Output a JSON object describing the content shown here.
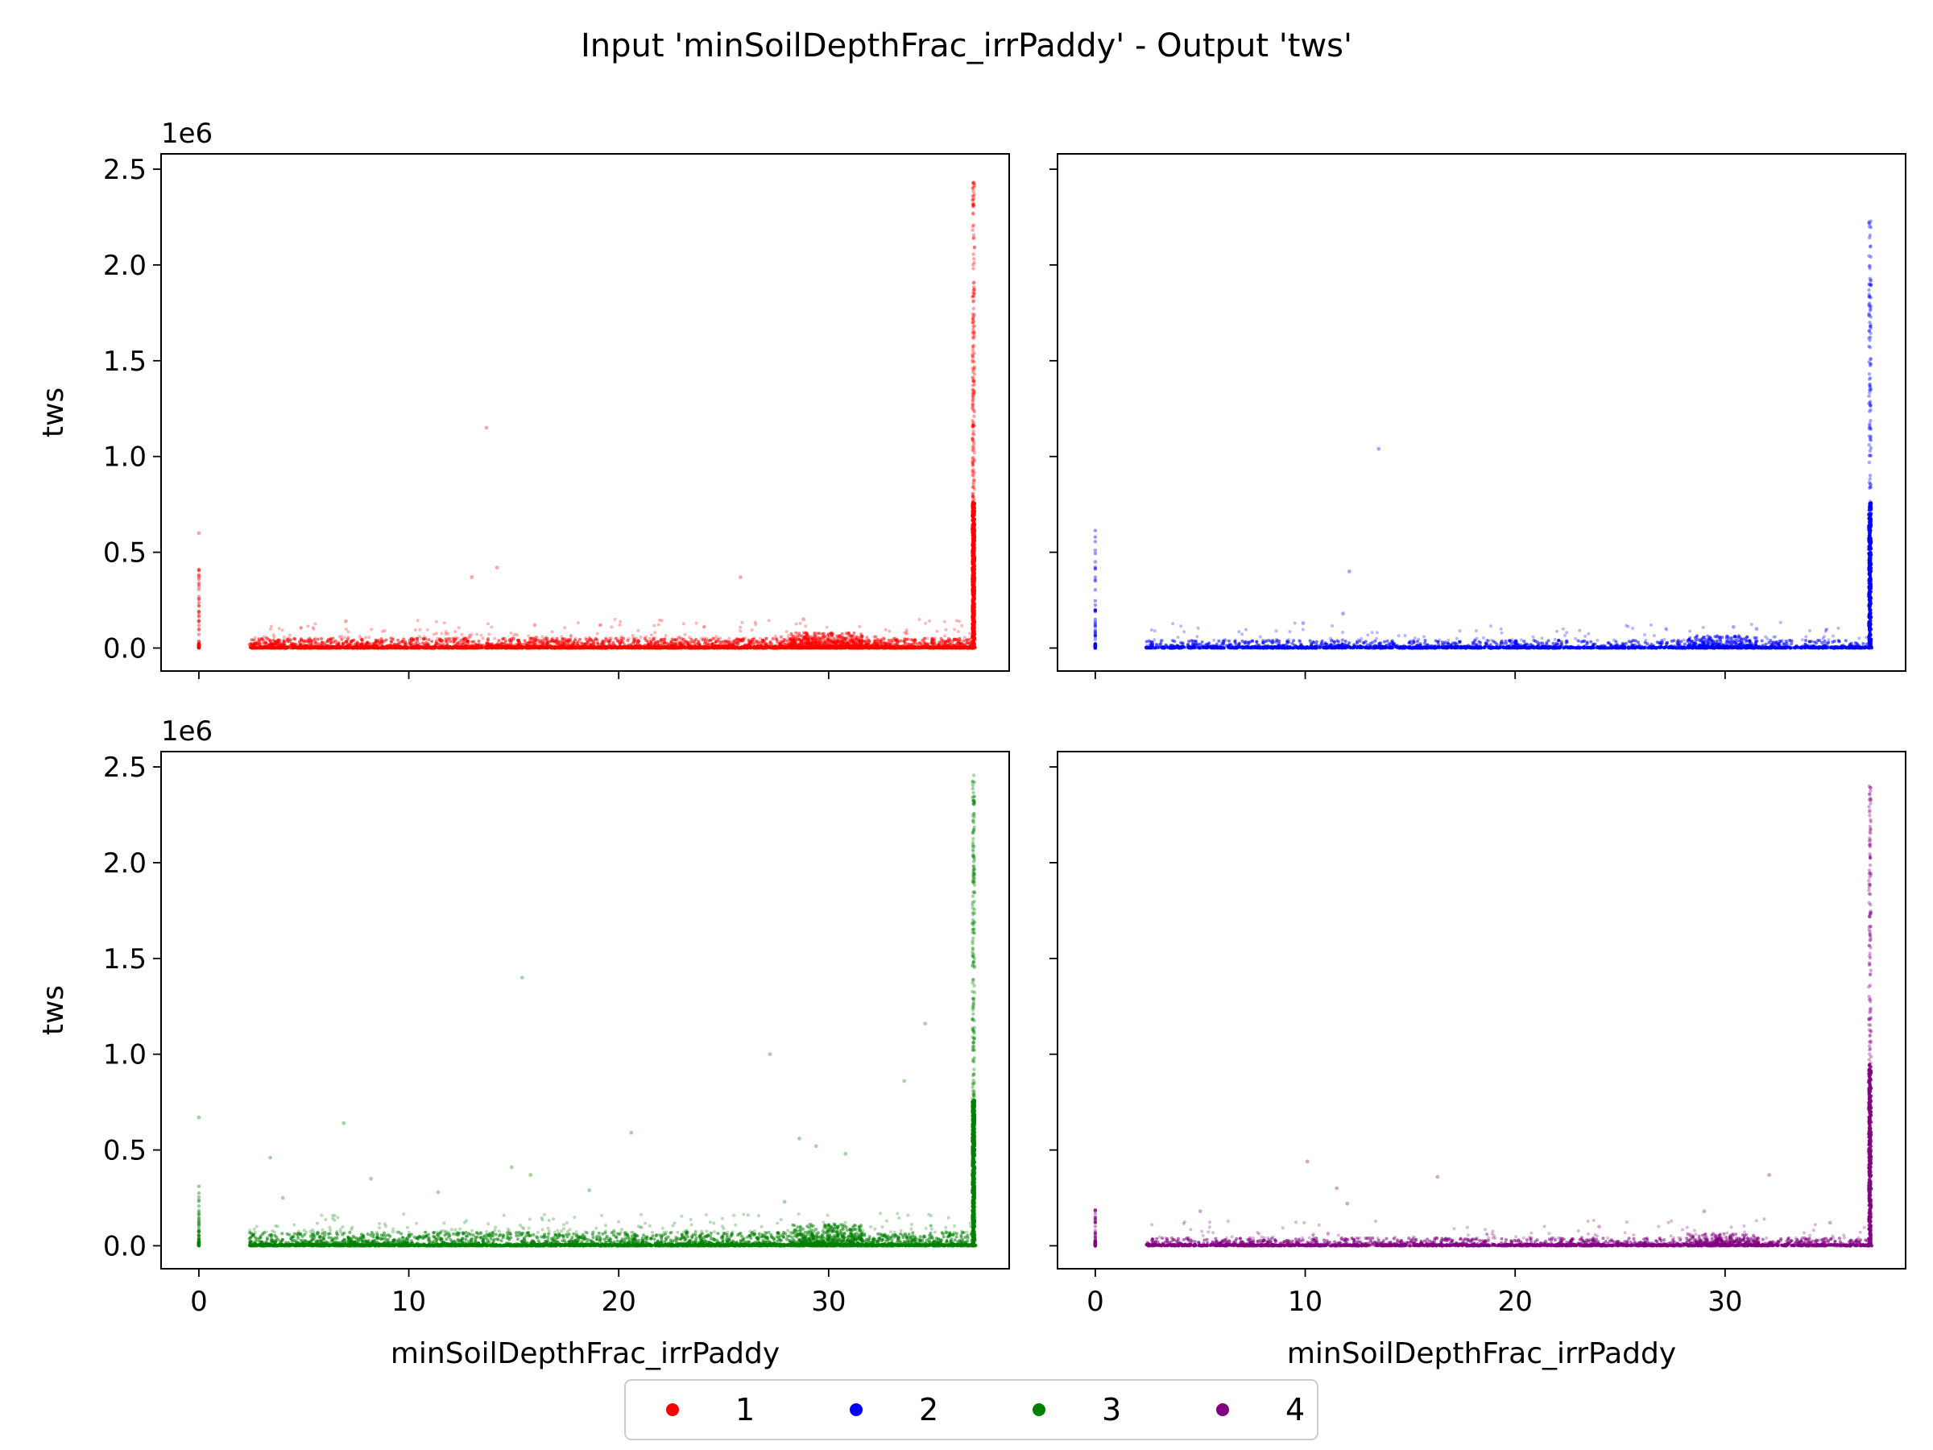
{
  "title": "Input 'minSoilDepthFrac_irrPaddy' - Output 'tws'",
  "chart_data": {
    "type": "scatter",
    "layout": "2x2 subplots, shared axes",
    "xlabel": "minSoilDepthFrac_irrPaddy",
    "ylabel": "tws",
    "y_offset_label": "1e6",
    "xlim": [
      -1.8,
      38.6
    ],
    "ylim": [
      -0.12,
      2.58
    ],
    "xticks": [
      0,
      10,
      20,
      30
    ],
    "xtick_labels": [
      "0",
      "10",
      "20",
      "30"
    ],
    "yticks": [
      0.0,
      0.5,
      1.0,
      1.5,
      2.0,
      2.5
    ],
    "ytick_labels": [
      "0.0",
      "0.5",
      "1.0",
      "1.5",
      "2.0",
      "2.5"
    ],
    "y_units": "x 1e6",
    "legend": {
      "position": "bottom-center",
      "entries": [
        "1",
        "2",
        "3",
        "4"
      ]
    },
    "panels": [
      {
        "series": "1",
        "color": "#ff0000",
        "density": 1.0,
        "base_x_start": 2.4,
        "zero_cluster_max": 0.42,
        "col_max": 2.45,
        "col_dense_max": 0.76,
        "band_max": 0.05,
        "outliers": [
          [
            0.0,
            0.6
          ],
          [
            13.7,
            1.15
          ],
          [
            13.0,
            0.37
          ],
          [
            14.2,
            0.42
          ],
          [
            25.8,
            0.37
          ],
          [
            28.8,
            0.15
          ],
          [
            7.0,
            0.14
          ],
          [
            16.0,
            0.12
          ]
        ]
      },
      {
        "series": "2",
        "color": "#0000ff",
        "density": 0.55,
        "base_x_start": 2.4,
        "zero_cluster_max": 0.62,
        "col_max": 2.25,
        "col_dense_max": 0.76,
        "band_max": 0.04,
        "outliers": [
          [
            13.5,
            1.04
          ],
          [
            12.1,
            0.4
          ],
          [
            11.8,
            0.18
          ],
          [
            9.9,
            0.13
          ],
          [
            0.0,
            0.51
          ],
          [
            0.0,
            0.45
          ],
          [
            30.4,
            0.11
          ],
          [
            31.5,
            0.1
          ]
        ]
      },
      {
        "series": "3",
        "color": "#008000",
        "density": 1.0,
        "base_x_start": 2.4,
        "zero_cluster_max": 0.33,
        "col_max": 2.46,
        "col_dense_max": 0.76,
        "band_max": 0.07,
        "outliers": [
          [
            0.0,
            0.67
          ],
          [
            3.4,
            0.46
          ],
          [
            4.0,
            0.25
          ],
          [
            6.9,
            0.64
          ],
          [
            8.2,
            0.35
          ],
          [
            11.4,
            0.28
          ],
          [
            14.9,
            0.41
          ],
          [
            15.4,
            1.4
          ],
          [
            15.8,
            0.37
          ],
          [
            18.6,
            0.29
          ],
          [
            20.6,
            0.59
          ],
          [
            27.2,
            1.0
          ],
          [
            28.6,
            0.56
          ],
          [
            29.4,
            0.52
          ],
          [
            30.8,
            0.48
          ],
          [
            33.6,
            0.86
          ],
          [
            34.6,
            1.16
          ],
          [
            27.9,
            0.23
          ]
        ]
      },
      {
        "series": "4",
        "color": "#800080",
        "density": 0.6,
        "base_x_start": 2.4,
        "zero_cluster_max": 0.2,
        "col_max": 2.4,
        "col_dense_max": 0.95,
        "band_max": 0.04,
        "outliers": [
          [
            10.1,
            0.44
          ],
          [
            11.5,
            0.3
          ],
          [
            12.0,
            0.22
          ],
          [
            16.3,
            0.36
          ],
          [
            29.0,
            0.18
          ],
          [
            32.1,
            0.37
          ],
          [
            35.0,
            0.12
          ],
          [
            24.0,
            0.1
          ],
          [
            5.0,
            0.18
          ]
        ]
      }
    ]
  }
}
